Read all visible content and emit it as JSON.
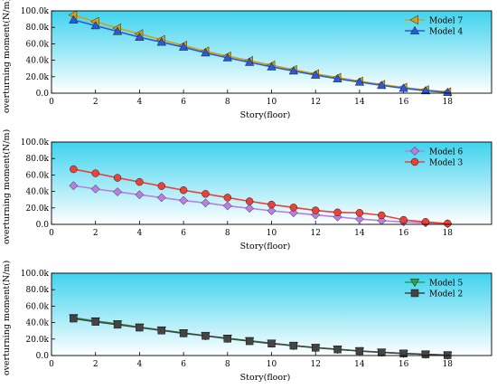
{
  "chart_data": [
    {
      "type": "line",
      "xlabel": "Story(floor)",
      "ylabel": "overturning moment(N/m)",
      "xlim": [
        0,
        20
      ],
      "ylim": [
        0,
        100000
      ],
      "x_ticks": [
        "0",
        "2",
        "4",
        "6",
        "8",
        "10",
        "12",
        "14",
        "16",
        "18"
      ],
      "y_ticks": [
        "0.0",
        "20.0k",
        "40.0k",
        "60.0k",
        "80.0k",
        "100.0k"
      ],
      "x": [
        1,
        2,
        3,
        4,
        5,
        6,
        7,
        8,
        9,
        10,
        11,
        12,
        13,
        14,
        15,
        16,
        17,
        18
      ],
      "legend_position": "top-right",
      "background": "gradient cyan (top) to white (bottom)",
      "series": [
        {
          "name": "Model 7",
          "color": "#d4a017",
          "marker": "triangle-left",
          "values": [
            95000,
            87000,
            79000,
            72000,
            65000,
            58000,
            51000,
            45000,
            39500,
            34000,
            28500,
            23500,
            19000,
            14500,
            10500,
            7000,
            4000,
            1500
          ]
        },
        {
          "name": "Model 4",
          "color": "#2a5bd7",
          "marker": "triangle-up",
          "values": [
            89000,
            82000,
            75000,
            68000,
            62000,
            56000,
            49000,
            43000,
            37500,
            32000,
            27000,
            22000,
            17500,
            13500,
            9500,
            6000,
            3000,
            1000
          ]
        }
      ]
    },
    {
      "type": "line",
      "xlabel": "Story(floor)",
      "ylabel": "overturning moment(N/m)",
      "xlim": [
        0,
        20
      ],
      "ylim": [
        0,
        100000
      ],
      "x_ticks": [
        "0",
        "2",
        "4",
        "6",
        "8",
        "10",
        "12",
        "14",
        "16",
        "18"
      ],
      "y_ticks": [
        "0.0",
        "20.0k",
        "40.0k",
        "60.0k",
        "80.0k",
        "100.0k"
      ],
      "x": [
        1,
        2,
        3,
        4,
        5,
        6,
        7,
        8,
        9,
        10,
        11,
        12,
        13,
        14,
        15,
        16,
        17,
        18
      ],
      "legend_position": "top-right",
      "background": "gradient cyan (top) to white (bottom)",
      "series": [
        {
          "name": "Model 6",
          "color": "#b87fe0",
          "marker": "diamond",
          "values": [
            47000,
            43000,
            39500,
            36000,
            32500,
            29000,
            26000,
            22500,
            19500,
            16500,
            14000,
            11500,
            9000,
            6500,
            4500,
            3000,
            1800,
            800
          ]
        },
        {
          "name": "Model 3",
          "color": "#e8423a",
          "marker": "circle",
          "values": [
            67000,
            62000,
            56500,
            51500,
            46500,
            41500,
            37000,
            32500,
            28000,
            24000,
            20500,
            17000,
            14500,
            14000,
            11000,
            5500,
            3000,
            1000
          ]
        }
      ]
    },
    {
      "type": "line",
      "xlabel": "Story(floor)",
      "ylabel": "overturning moment(N/m)",
      "xlim": [
        0,
        20
      ],
      "ylim": [
        0,
        100000
      ],
      "x_ticks": [
        "0",
        "2",
        "4",
        "6",
        "8",
        "10",
        "12",
        "14",
        "16",
        "18"
      ],
      "y_ticks": [
        "0.0",
        "20.0k",
        "40.0k",
        "60.0k",
        "80.0k",
        "100.0k"
      ],
      "x": [
        1,
        2,
        3,
        4,
        5,
        6,
        7,
        8,
        9,
        10,
        11,
        12,
        13,
        14,
        15,
        16,
        17,
        18
      ],
      "legend_position": "top-right",
      "background": "gradient cyan (top) to white (bottom)",
      "series": [
        {
          "name": "Model 5",
          "color": "#2e9e4a",
          "marker": "triangle-down",
          "values": [
            46000,
            42000,
            38500,
            34500,
            31000,
            27500,
            24000,
            21000,
            18000,
            15000,
            12000,
            9500,
            7500,
            5500,
            4000,
            2500,
            1500,
            500
          ]
        },
        {
          "name": "Model 2",
          "color": "#444444",
          "marker": "square",
          "values": [
            45000,
            41000,
            37500,
            34000,
            30500,
            27000,
            24000,
            20500,
            17500,
            14500,
            12000,
            9500,
            7500,
            5500,
            3800,
            2500,
            1500,
            500
          ]
        }
      ]
    }
  ]
}
